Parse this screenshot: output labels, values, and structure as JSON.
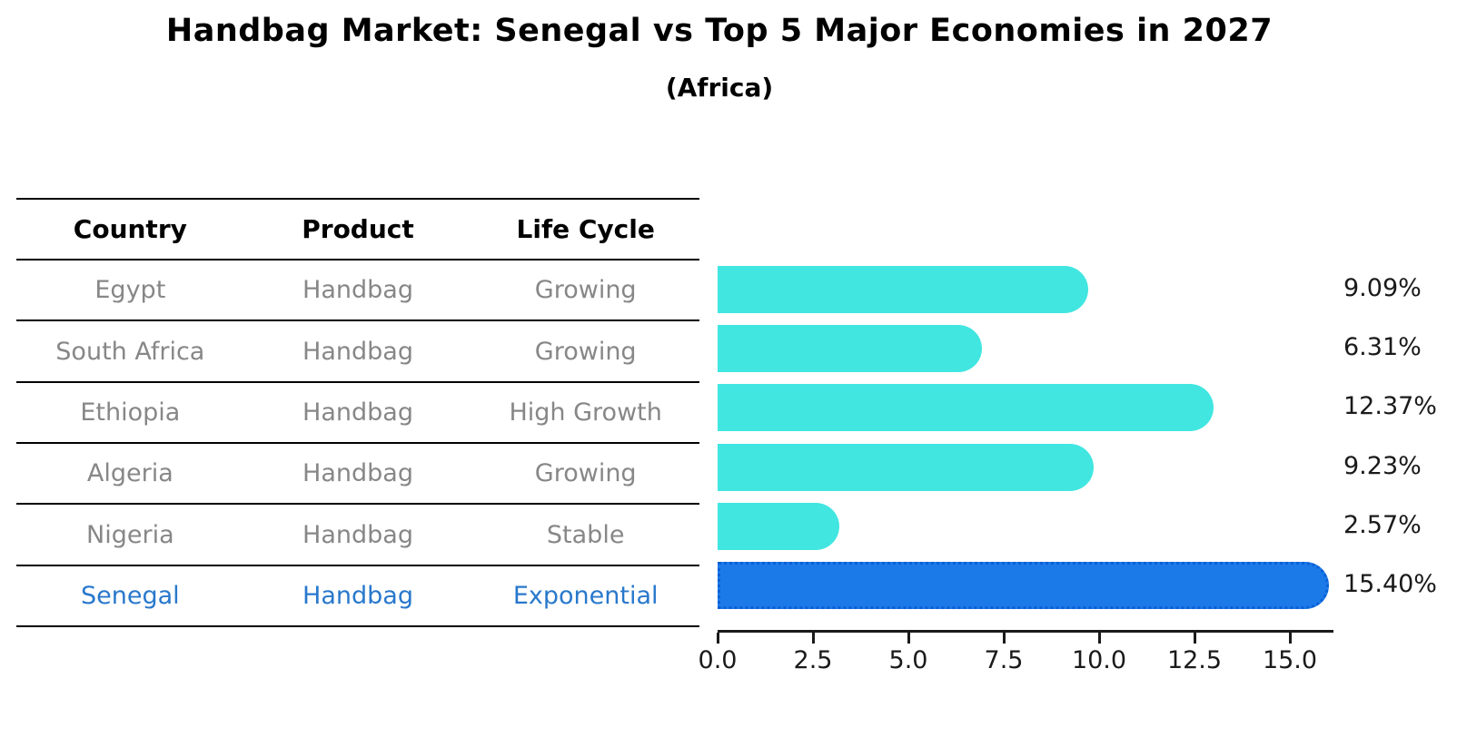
{
  "header": {
    "title": "Handbag Market: Senegal vs Top 5 Major Economies in 2027",
    "subtitle": "(Africa)"
  },
  "table": {
    "columns": [
      "Country",
      "Product",
      "Life Cycle"
    ],
    "rows": [
      {
        "country": "Egypt",
        "product": "Handbag",
        "life_cycle": "Growing"
      },
      {
        "country": "South Africa",
        "product": "Handbag",
        "life_cycle": "Growing"
      },
      {
        "country": "Ethiopia",
        "product": "Handbag",
        "life_cycle": "High Growth"
      },
      {
        "country": "Algeria",
        "product": "Handbag",
        "life_cycle": "Growing"
      },
      {
        "country": "Nigeria",
        "product": "Handbag",
        "life_cycle": "Stable"
      },
      {
        "country": "Senegal",
        "product": "Handbag",
        "life_cycle": "Exponential"
      }
    ]
  },
  "chart_data": {
    "type": "bar",
    "orientation": "horizontal",
    "title": "Handbag Market: Senegal vs Top 5 Major Economies in 2027",
    "subtitle": "(Africa)",
    "categories": [
      "Egypt",
      "South Africa",
      "Ethiopia",
      "Algeria",
      "Nigeria",
      "Senegal"
    ],
    "values": [
      9.09,
      6.31,
      12.37,
      9.23,
      2.57,
      15.4
    ],
    "value_labels": [
      "9.09%",
      "6.31%",
      "12.37%",
      "9.23%",
      "2.57%",
      "15.40%"
    ],
    "xlim": [
      0,
      16.1
    ],
    "xticks": [
      0.0,
      2.5,
      5.0,
      7.5,
      10.0,
      12.5,
      15.0
    ],
    "xtick_labels": [
      "0.0",
      "2.5",
      "5.0",
      "7.5",
      "10.0",
      "12.5",
      "15.0"
    ],
    "grid": false,
    "legend": "none",
    "bar_color": "#41E6E1",
    "highlight": {
      "index": 5,
      "category": "Senegal",
      "color": "#1B7AE8",
      "edge_color": "#0B5FD6",
      "edge_style": "dotted",
      "text_color": "#2878CC"
    }
  }
}
